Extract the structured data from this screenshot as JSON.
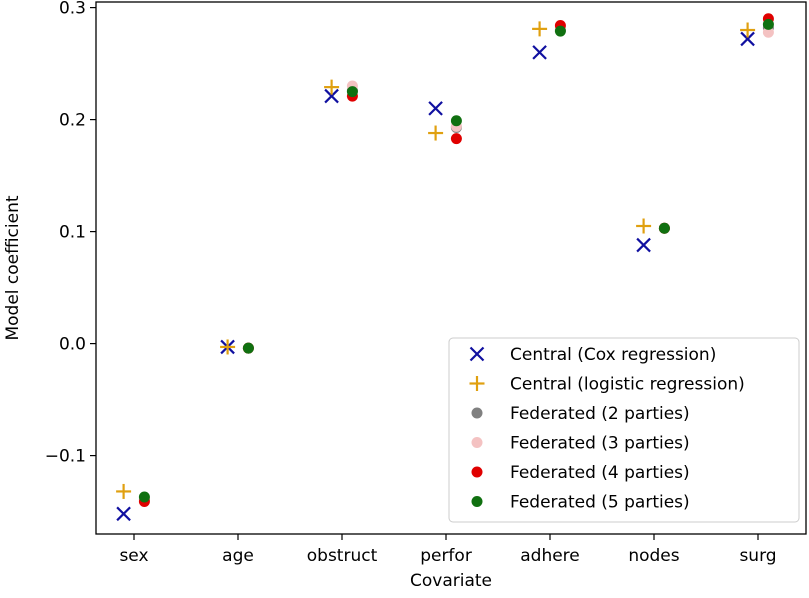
{
  "chart_data": {
    "type": "scatter",
    "title": "",
    "xlabel": "Covariate",
    "ylabel": "Model coefficient",
    "categories": [
      "sex",
      "age",
      "obstruct",
      "perfor",
      "adhere",
      "nodes",
      "surg"
    ],
    "ylim": [
      -0.17,
      0.305
    ],
    "yticks": [
      -0.1,
      0.0,
      0.1,
      0.2,
      0.3
    ],
    "ytick_labels": [
      "−0.1",
      "0.0",
      "0.1",
      "0.2",
      "0.3"
    ],
    "grid": false,
    "legend_position": "lower right",
    "series": [
      {
        "name": "Central (Cox regression)",
        "marker": "x",
        "color": "#1010a0",
        "offset": -0.1,
        "values": [
          -0.152,
          -0.003,
          0.221,
          0.21,
          0.26,
          0.088,
          0.272
        ]
      },
      {
        "name": "Central (logistic regression)",
        "marker": "plus",
        "color": "#e0a010",
        "offset": -0.1,
        "values": [
          -0.132,
          -0.003,
          0.229,
          0.188,
          0.281,
          0.105,
          0.28
        ]
      },
      {
        "name": "Federated (2 parties)",
        "marker": "dot",
        "color": "#808080",
        "offset": 0.1,
        "values": [
          -0.139,
          -0.004,
          0.226,
          0.193,
          0.28,
          0.103,
          0.282
        ]
      },
      {
        "name": "Federated (3 parties)",
        "marker": "dot",
        "color": "#f4c2c2",
        "offset": 0.1,
        "values": [
          -0.138,
          -0.004,
          0.23,
          0.194,
          0.282,
          0.103,
          0.278
        ]
      },
      {
        "name": "Federated (4 parties)",
        "marker": "dot",
        "color": "#e00000",
        "offset": 0.1,
        "values": [
          -0.141,
          -0.004,
          0.221,
          0.183,
          0.284,
          0.103,
          0.29
        ]
      },
      {
        "name": "Federated (5 parties)",
        "marker": "dot",
        "color": "#107010",
        "offset": 0.1,
        "values": [
          -0.137,
          -0.004,
          0.225,
          0.199,
          0.279,
          0.103,
          0.285
        ]
      }
    ]
  }
}
